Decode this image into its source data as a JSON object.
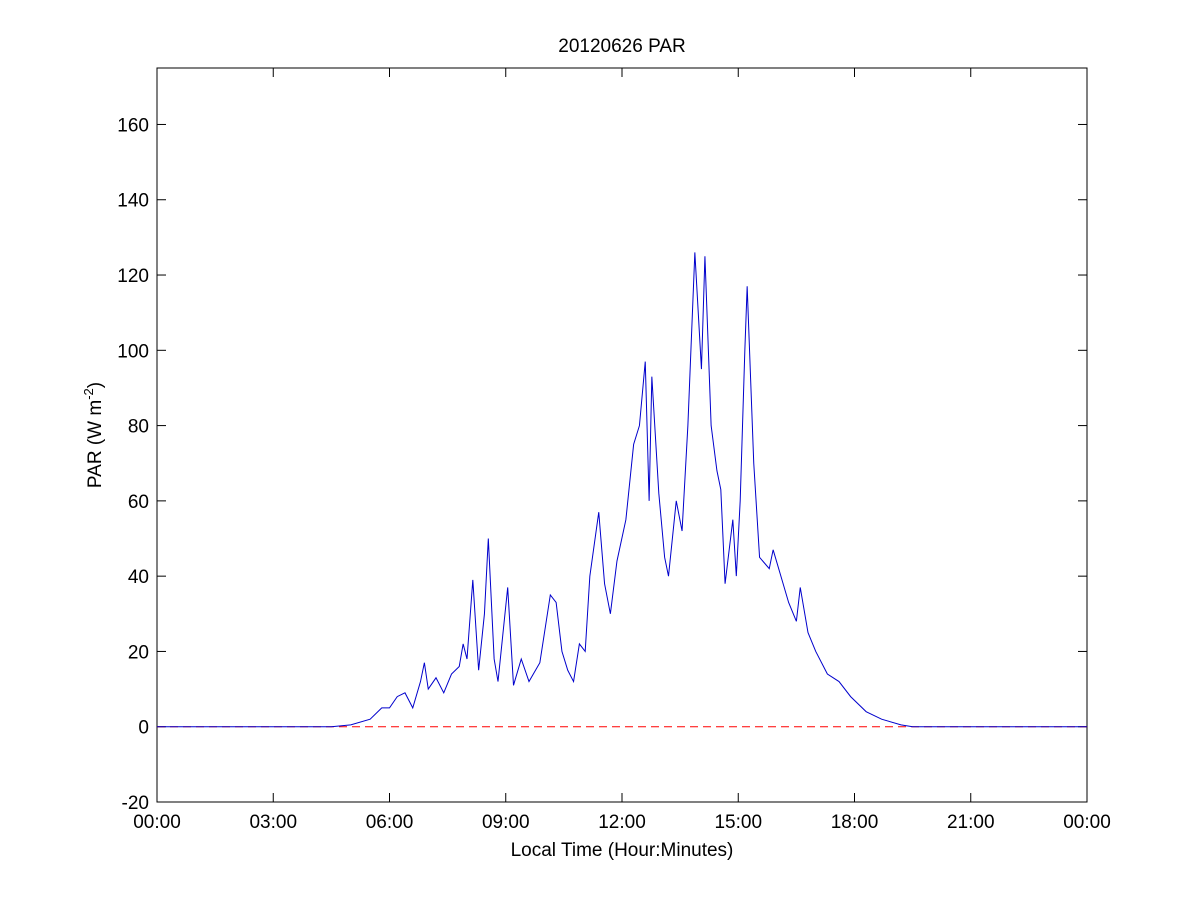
{
  "chart_data": {
    "type": "line",
    "title": "20120626 PAR",
    "xlabel": "Local Time (Hour:Minutes)",
    "ylabel": {
      "text": "PAR (W m",
      "superscript": "-2",
      "suffix": ")"
    },
    "x": [
      0,
      4.5,
      5,
      5.5,
      5.8,
      6.0,
      6.2,
      6.4,
      6.6,
      6.8,
      6.9,
      7.0,
      7.2,
      7.4,
      7.6,
      7.8,
      7.9,
      8.0,
      8.15,
      8.3,
      8.45,
      8.55,
      8.7,
      8.8,
      9.05,
      9.2,
      9.4,
      9.6,
      9.88,
      10.15,
      10.3,
      10.45,
      10.6,
      10.75,
      10.9,
      11.05,
      11.17,
      11.4,
      11.55,
      11.7,
      11.87,
      12.1,
      12.3,
      12.45,
      12.6,
      12.7,
      12.77,
      12.95,
      13.1,
      13.2,
      13.4,
      13.55,
      13.7,
      13.88,
      14.05,
      14.14,
      14.3,
      14.45,
      14.55,
      14.66,
      14.86,
      14.95,
      15.05,
      15.17,
      15.23,
      15.4,
      15.55,
      15.8,
      15.9,
      16.1,
      16.3,
      16.5,
      16.6,
      16.8,
      17.0,
      17.3,
      17.6,
      17.9,
      18.3,
      18.7,
      19.2,
      19.5,
      24
    ],
    "series": [
      {
        "name": "PAR",
        "color": "#0000cc",
        "values": [
          0,
          0,
          0.5,
          2,
          5,
          5,
          8,
          9,
          5,
          12,
          17,
          10,
          13,
          9,
          14,
          16,
          22,
          18,
          39,
          15,
          30,
          50,
          18,
          12,
          37,
          11,
          18,
          12,
          17,
          35,
          33,
          20,
          15,
          12,
          22,
          20,
          40,
          57,
          38,
          30,
          44,
          55,
          75,
          80,
          97,
          60,
          93,
          62,
          45,
          40,
          60,
          52,
          80,
          126,
          95,
          125,
          80,
          68,
          63,
          38,
          55,
          40,
          60,
          100,
          117,
          70,
          45,
          42,
          47,
          40,
          33,
          28,
          37,
          25,
          20,
          14,
          12,
          8,
          4,
          2,
          0.5,
          0,
          0
        ]
      }
    ],
    "reference_line": {
      "value": 0,
      "color": "#ff0000"
    },
    "xlim": [
      0,
      24
    ],
    "xticks": [
      {
        "value": 0,
        "label": "00:00"
      },
      {
        "value": 3,
        "label": "03:00"
      },
      {
        "value": 6,
        "label": "06:00"
      },
      {
        "value": 9,
        "label": "09:00"
      },
      {
        "value": 12,
        "label": "12:00"
      },
      {
        "value": 15,
        "label": "15:00"
      },
      {
        "value": 18,
        "label": "18:00"
      },
      {
        "value": 21,
        "label": "21:00"
      },
      {
        "value": 24,
        "label": "00:00"
      }
    ],
    "ylim": [
      -20,
      175
    ],
    "yticks": [
      -20,
      0,
      20,
      40,
      60,
      80,
      100,
      120,
      140,
      160
    ],
    "grid": false
  }
}
